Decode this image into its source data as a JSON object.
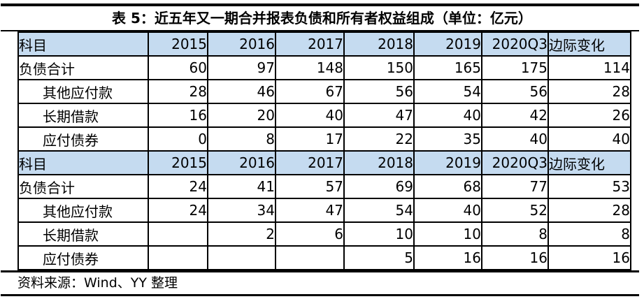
{
  "page": {
    "title": "表 5：近五年又一期合并报表负债和所有者权益组成（单位：亿元）",
    "source_note": "资料来源：Wind、YY 整理"
  },
  "colors": {
    "header_bg": "#c5dbf0",
    "border": "#000000",
    "rule": "#000000"
  },
  "table": {
    "columns": [
      "科目",
      "2015",
      "2016",
      "2017",
      "2018",
      "2019",
      "2020Q3",
      "边际变化"
    ],
    "sections": [
      {
        "rows": [
          {
            "label": "负债合计",
            "bold": true,
            "indent": false,
            "values": [
              "60",
              "97",
              "148",
              "150",
              "165",
              "175",
              "114"
            ]
          },
          {
            "label": "其他应付款",
            "bold": false,
            "indent": true,
            "values": [
              "28",
              "46",
              "67",
              "56",
              "54",
              "56",
              "28"
            ]
          },
          {
            "label": "长期借款",
            "bold": false,
            "indent": true,
            "values": [
              "16",
              "20",
              "40",
              "47",
              "40",
              "42",
              "26"
            ]
          },
          {
            "label": "应付债券",
            "bold": false,
            "indent": true,
            "values": [
              "0",
              "8",
              "17",
              "22",
              "35",
              "40",
              "40"
            ]
          }
        ]
      },
      {
        "rows": [
          {
            "label": "负债合计",
            "bold": true,
            "indent": false,
            "values": [
              "24",
              "41",
              "57",
              "69",
              "68",
              "77",
              "53"
            ]
          },
          {
            "label": "其他应付款",
            "bold": false,
            "indent": true,
            "values": [
              "24",
              "34",
              "47",
              "54",
              "40",
              "52",
              "28"
            ]
          },
          {
            "label": "长期借款",
            "bold": false,
            "indent": true,
            "values": [
              "",
              "2",
              "6",
              "10",
              "10",
              "8",
              "8"
            ]
          },
          {
            "label": "应付债券",
            "bold": false,
            "indent": true,
            "values": [
              "",
              "",
              "",
              "5",
              "16",
              "16",
              "16"
            ]
          }
        ]
      }
    ]
  }
}
